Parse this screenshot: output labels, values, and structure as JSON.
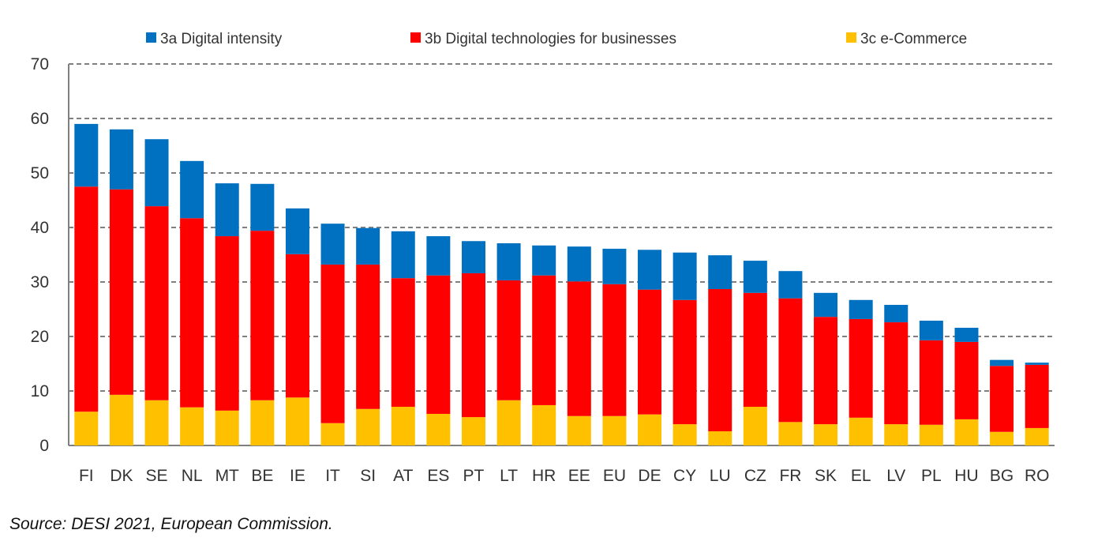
{
  "chart_data": {
    "type": "bar",
    "stacked": true,
    "categories": [
      "FI",
      "DK",
      "SE",
      "NL",
      "MT",
      "BE",
      "IE",
      "IT",
      "SI",
      "AT",
      "ES",
      "PT",
      "LT",
      "HR",
      "EE",
      "EU",
      "DE",
      "CY",
      "LU",
      "CZ",
      "FR",
      "SK",
      "EL",
      "LV",
      "PL",
      "HU",
      "BG",
      "RO"
    ],
    "series": [
      {
        "name": "3c e-Commerce",
        "color": "#FFC000",
        "values": [
          6.2,
          9.3,
          8.3,
          7.0,
          6.4,
          8.3,
          8.8,
          4.1,
          6.7,
          7.1,
          5.8,
          5.2,
          8.3,
          7.4,
          5.4,
          5.4,
          5.7,
          3.9,
          2.6,
          7.1,
          4.3,
          3.9,
          5.1,
          3.9,
          3.8,
          4.8,
          2.5,
          3.2
        ]
      },
      {
        "name": "3b Digital technologies for businesses",
        "color": "#FF0000",
        "values": [
          41.3,
          37.7,
          35.6,
          34.7,
          32.0,
          31.1,
          26.3,
          29.1,
          26.5,
          23.6,
          25.4,
          26.4,
          22.0,
          23.8,
          24.7,
          24.2,
          22.9,
          22.8,
          26.1,
          20.9,
          22.7,
          19.7,
          18.1,
          18.7,
          15.5,
          14.2,
          12.1,
          11.6
        ]
      },
      {
        "name": "3a Digital intensity",
        "color": "#0070C0",
        "values": [
          11.5,
          11.0,
          12.3,
          10.5,
          9.7,
          8.6,
          8.4,
          7.5,
          6.7,
          8.6,
          7.2,
          5.9,
          6.8,
          5.5,
          6.4,
          6.5,
          7.3,
          8.7,
          6.2,
          5.9,
          5.0,
          4.4,
          3.5,
          3.2,
          3.6,
          2.6,
          1.1,
          0.4
        ]
      }
    ],
    "legend_order": [
      "3a Digital intensity",
      "3b Digital technologies for businesses",
      "3c e-Commerce"
    ],
    "legend_placement": "top",
    "ylim": [
      0,
      70
    ],
    "yticks": [
      "0",
      "10",
      "20",
      "30",
      "40",
      "50",
      "60",
      "70"
    ],
    "grid": "dashed horizontal",
    "xlabel": "",
    "ylabel": ""
  },
  "source": "Source: DESI 2021, European Commission."
}
